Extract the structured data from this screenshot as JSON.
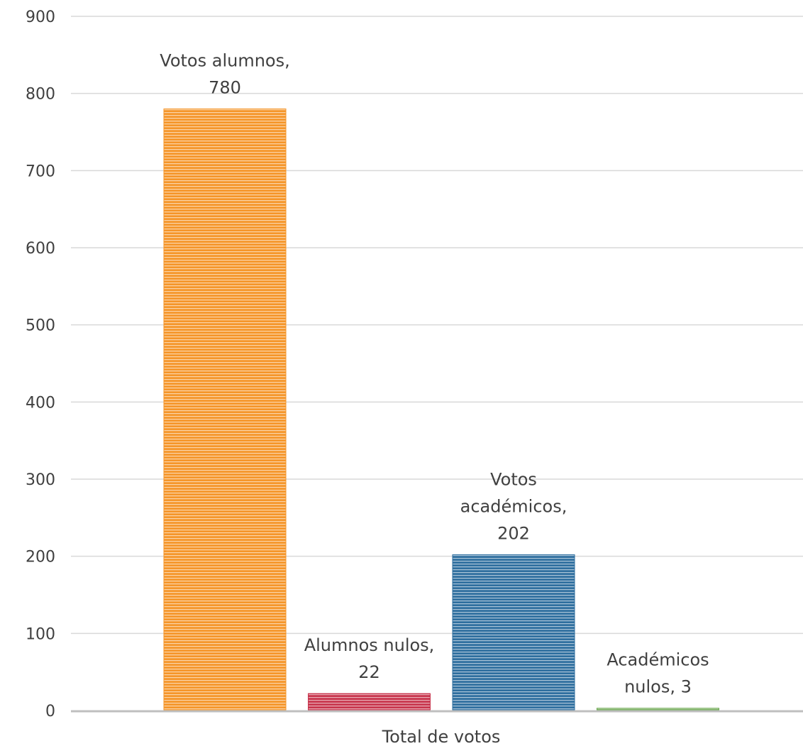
{
  "chart_data": {
    "type": "bar",
    "categories": [
      "Total de votos"
    ],
    "xlabel": "Total de votos",
    "ylim": [
      0,
      900
    ],
    "yticks": [
      0,
      100,
      200,
      300,
      400,
      500,
      600,
      700,
      800,
      900
    ],
    "grid": true,
    "series": [
      {
        "name": "Votos alumnos",
        "values": [
          780
        ],
        "color": "#f5962a",
        "label_lines": [
          "Votos alumnos,",
          "780"
        ]
      },
      {
        "name": "Alumnos nulos",
        "values": [
          22
        ],
        "color": "#c8364e",
        "label_lines": [
          "Alumnos nulos,",
          "22"
        ]
      },
      {
        "name": "Votos académicos",
        "values": [
          202
        ],
        "color": "#2f6f9f",
        "label_lines": [
          "Votos",
          "académicos,",
          "202"
        ]
      },
      {
        "name": "Académicos nulos",
        "values": [
          3
        ],
        "color": "#6aa84f",
        "label_lines": [
          "Académicos",
          "nulos, 3"
        ]
      }
    ]
  }
}
